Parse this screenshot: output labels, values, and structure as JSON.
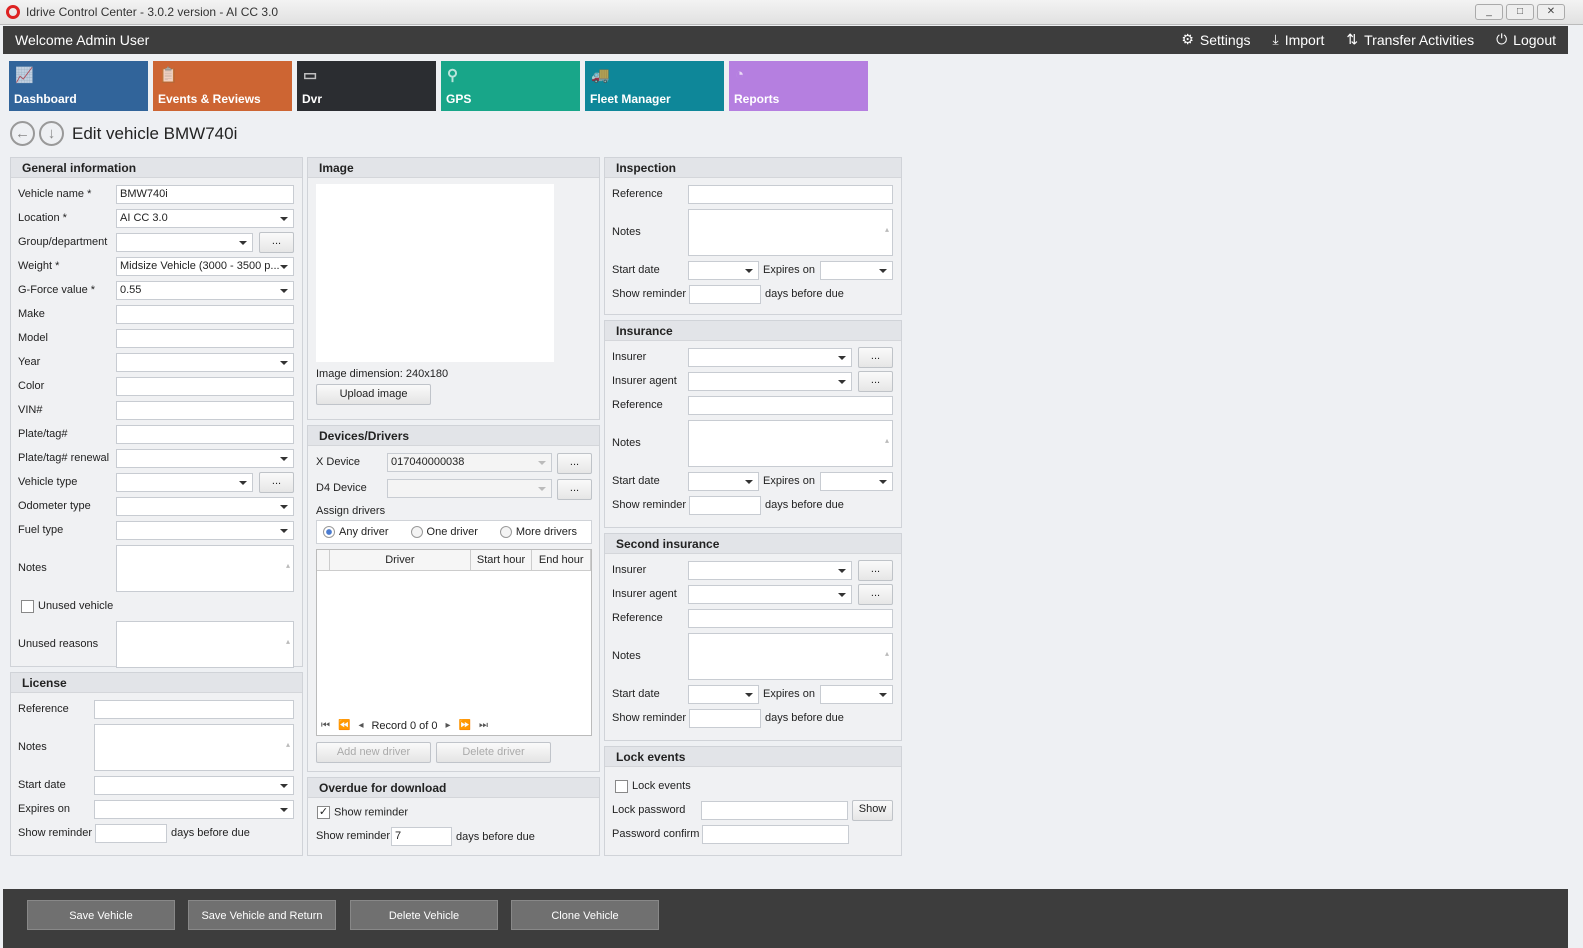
{
  "window": {
    "title": "Idrive Control Center - 3.0.2 version - AI CC 3.0",
    "minimize": "_",
    "maximize": "□",
    "close": "✕"
  },
  "topbar": {
    "welcome": "Welcome Admin User",
    "settings": "Settings",
    "import": "Import",
    "transfer": "Transfer Activities",
    "logout": "Logout"
  },
  "tiles": [
    {
      "label": "Dashboard",
      "color": "#31649a",
      "icon": "📈"
    },
    {
      "label": "Events & Reviews",
      "color": "#cd6533",
      "icon": "📋"
    },
    {
      "label": "Dvr",
      "color": "#2b2d31",
      "icon": "▭"
    },
    {
      "label": "GPS",
      "color": "#18a689",
      "icon": "⚲"
    },
    {
      "label": "Fleet Manager",
      "color": "#0e8799",
      "icon": "🚚"
    },
    {
      "label": "Reports",
      "color": "#b57fe0",
      "icon": "◔"
    }
  ],
  "page": {
    "title": "Edit vehicle BMW740i"
  },
  "general": {
    "title": "General information",
    "rows": [
      {
        "label": "Vehicle name *",
        "type": "text",
        "value": "BMW740i"
      },
      {
        "label": "Location *",
        "type": "select",
        "value": "AI CC 3.0"
      },
      {
        "label": "Group/department",
        "type": "selectbtn",
        "value": "",
        "btn": "..."
      },
      {
        "label": "Weight *",
        "type": "select",
        "value": "Midsize Vehicle (3000 - 3500 p..."
      },
      {
        "label": "G-Force value *",
        "type": "select",
        "value": "0.55"
      },
      {
        "label": "Make",
        "type": "text",
        "value": ""
      },
      {
        "label": "Model",
        "type": "text",
        "value": ""
      },
      {
        "label": "Year",
        "type": "select",
        "value": ""
      },
      {
        "label": "Color",
        "type": "text",
        "value": ""
      },
      {
        "label": "VIN#",
        "type": "text",
        "value": ""
      },
      {
        "label": "Plate/tag#",
        "type": "text",
        "value": ""
      },
      {
        "label": "Plate/tag# renewal",
        "type": "select",
        "value": ""
      },
      {
        "label": "Vehicle type",
        "type": "selectbtn",
        "value": "",
        "btn": "..."
      },
      {
        "label": "Odometer type",
        "type": "select",
        "value": ""
      },
      {
        "label": "Fuel type",
        "type": "select",
        "value": ""
      },
      {
        "label": "Notes",
        "type": "textarea",
        "value": ""
      },
      {
        "label": "Unused vehicle",
        "type": "checkbox",
        "checked": false
      },
      {
        "label": "Unused reasons",
        "type": "textarea",
        "value": ""
      }
    ]
  },
  "license": {
    "title": "License",
    "rows": [
      {
        "label": "Reference",
        "type": "text",
        "value": ""
      },
      {
        "label": "Notes",
        "type": "textarea",
        "value": ""
      },
      {
        "label": "Start date",
        "type": "select",
        "value": ""
      },
      {
        "label": "Expires on",
        "type": "select",
        "value": ""
      },
      {
        "label": "Show reminder",
        "type": "reminder",
        "value": "",
        "suffix": "days before due"
      }
    ]
  },
  "image": {
    "title": "Image",
    "dimension_label": "Image dimension:",
    "dimension": "240x180",
    "upload": "Upload image"
  },
  "devices": {
    "title": "Devices/Drivers",
    "x_device_label": "X Device",
    "x_device": "017040000038",
    "d4_device_label": "D4 Device",
    "d4_device": "",
    "btn": "...",
    "assign": "Assign drivers",
    "radios": [
      {
        "label": "Any driver",
        "checked": true
      },
      {
        "label": "One driver",
        "checked": false
      },
      {
        "label": "More drivers",
        "checked": false
      }
    ],
    "columns": [
      "Driver",
      "Start hour",
      "End hour"
    ],
    "record": "Record 0 of 0",
    "add": "Add new driver",
    "delete": "Delete driver"
  },
  "overdue": {
    "title": "Overdue for download",
    "show_reminder_check": "Show reminder",
    "checked": true,
    "reminder_label": "Show reminder",
    "reminder_value": "7",
    "suffix": "days before due"
  },
  "inspection": {
    "title": "Inspection",
    "rows": [
      {
        "label": "Reference",
        "type": "text",
        "value": ""
      },
      {
        "label": "Notes",
        "type": "textarea",
        "value": ""
      },
      {
        "label": "Start date",
        "type": "datepair",
        "value": "",
        "label2": "Expires on",
        "value2": ""
      },
      {
        "label": "Show reminder",
        "type": "reminder",
        "value": "",
        "suffix": "days before due"
      }
    ]
  },
  "insurance": {
    "title": "Insurance",
    "rows": [
      {
        "label": "Insurer",
        "type": "selectbtn",
        "value": "",
        "btn": "..."
      },
      {
        "label": "Insurer agent",
        "type": "selectbtn",
        "value": "",
        "btn": "..."
      },
      {
        "label": "Reference",
        "type": "text",
        "value": ""
      },
      {
        "label": "Notes",
        "type": "textarea",
        "value": ""
      },
      {
        "label": "Start date",
        "type": "datepair",
        "value": "",
        "label2": "Expires on",
        "value2": ""
      },
      {
        "label": "Show reminder",
        "type": "reminder",
        "value": "",
        "suffix": "days before due"
      }
    ]
  },
  "second_insurance": {
    "title": "Second insurance",
    "rows": [
      {
        "label": "Insurer",
        "type": "selectbtn",
        "value": "",
        "btn": "..."
      },
      {
        "label": "Insurer agent",
        "type": "selectbtn",
        "value": "",
        "btn": "..."
      },
      {
        "label": "Reference",
        "type": "text",
        "value": ""
      },
      {
        "label": "Notes",
        "type": "textarea",
        "value": ""
      },
      {
        "label": "Start date",
        "type": "datepair",
        "value": "",
        "label2": "Expires on",
        "value2": ""
      },
      {
        "label": "Show reminder",
        "type": "reminder",
        "value": "",
        "suffix": "days before due"
      }
    ]
  },
  "lock": {
    "title": "Lock events",
    "rows": [
      {
        "label": "Lock events",
        "type": "checkbox",
        "checked": false
      },
      {
        "label": "Lock password",
        "type": "textbtn",
        "value": "",
        "btn": "Show"
      },
      {
        "label": "Password confirm",
        "type": "pw",
        "value": ""
      }
    ]
  },
  "footer": {
    "save": "Save Vehicle",
    "save_return": "Save Vehicle and Return",
    "delete": "Delete Vehicle",
    "clone": "Clone Vehicle"
  }
}
